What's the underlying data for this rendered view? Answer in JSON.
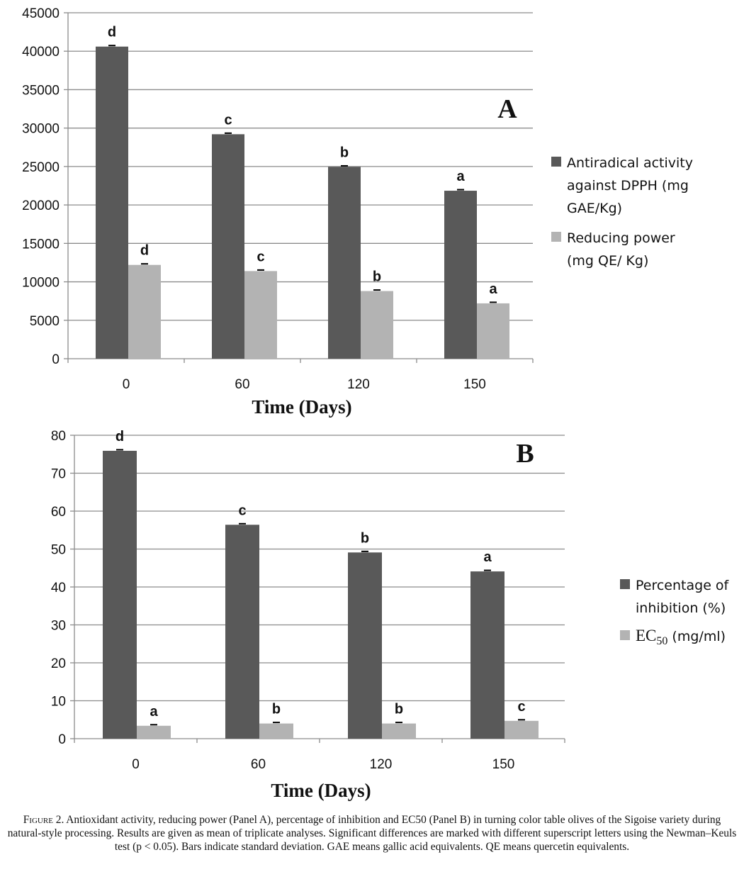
{
  "chart_data": [
    {
      "type": "bar",
      "panel": "A",
      "categories": [
        "0",
        "60",
        "120",
        "150"
      ],
      "xlabel": "Time (Days)",
      "ylim": [
        0,
        45000
      ],
      "yticks": [
        "0",
        "5000",
        "10000",
        "15000",
        "20000",
        "25000",
        "30000",
        "35000",
        "40000",
        "45000"
      ],
      "grid": true,
      "legend": "right",
      "series": [
        {
          "legend_lines": [
            "Antiradical activity",
            "against DPPH (mg",
            "GAE/Kg)"
          ],
          "color": "#595959",
          "values": [
            40600,
            29200,
            24950,
            21850
          ],
          "letters": [
            "d",
            "c",
            "b",
            "a"
          ]
        },
        {
          "legend_lines": [
            "Reducing power",
            "(mg QE/ Kg)"
          ],
          "color": "#b3b3b3",
          "values": [
            12200,
            11400,
            8800,
            7200
          ],
          "letters": [
            "d",
            "c",
            "b",
            "a"
          ]
        }
      ]
    },
    {
      "type": "bar",
      "panel": "B",
      "categories": [
        "0",
        "60",
        "120",
        "150"
      ],
      "xlabel": "Time (Days)",
      "ylim": [
        0,
        80
      ],
      "yticks": [
        "0",
        "10",
        "20",
        "30",
        "40",
        "50",
        "60",
        "70",
        "80"
      ],
      "grid": true,
      "legend": "right",
      "series": [
        {
          "legend_lines": [
            "Percentage of",
            "inhibition (%)"
          ],
          "color": "#595959",
          "values": [
            75.9,
            56.4,
            49.1,
            44.1
          ],
          "letters": [
            "d",
            "c",
            "b",
            "a"
          ]
        },
        {
          "legend_main": "EC",
          "legend_sub": "50",
          "legend_rest": " (mg/ml)",
          "color": "#b3b3b3",
          "values": [
            3.4,
            4.0,
            4.0,
            4.7
          ],
          "letters": [
            "a",
            "b",
            "b",
            "c"
          ]
        }
      ]
    }
  ],
  "caption": {
    "figure_label": "Figure 2.",
    "text": " Antioxidant activity, reducing power (Panel A), percentage of inhibition and EC50 (Panel B) in turning color table olives of the Sigoise variety during natural-style processing. Results are given as mean of triplicate analyses. Significant differences are marked with different superscript letters using the Newman–Keuls test (p < 0.05). Bars indicate standard deviation. GAE means gallic acid equivalents. QE means quercetin equivalents."
  }
}
